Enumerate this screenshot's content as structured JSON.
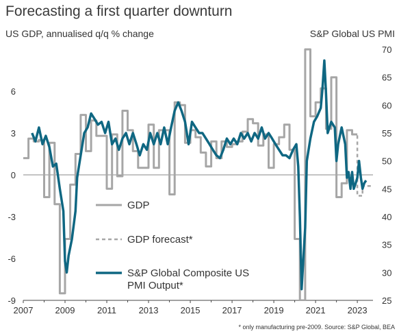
{
  "header": {
    "title": "Forecasting a first quarter downturn",
    "left_axis_title": "US GDP, annualised q/q % change",
    "right_axis_title": "S&P Global US PMI",
    "footnote": "* only manufacturing pre-2009. Source: S&P Global, BEA"
  },
  "chart_data": {
    "type": "line",
    "title": "Forecasting a first quarter downturn",
    "ylabel_left": "US GDP, annualised q/q % change",
    "ylabel_right": "S&P Global US PMI",
    "x_range": [
      2007.0,
      2023.75
    ],
    "x_ticks": [
      "2007",
      "2009",
      "2011",
      "2013",
      "2015",
      "2017",
      "2019",
      "2021",
      "2023"
    ],
    "y_left_range": [
      -9,
      9
    ],
    "y_left_ticks": [
      "-9",
      "-6",
      "-3",
      "0",
      "3",
      "6"
    ],
    "y_right_range": [
      25,
      70
    ],
    "y_right_ticks": [
      "25",
      "30",
      "35",
      "40",
      "45",
      "50",
      "55",
      "60",
      "65",
      "70"
    ],
    "grid": false,
    "colors": {
      "gdp": "#a6a6a6",
      "forecast": "#a6a6a6",
      "pmi": "#0f6782"
    },
    "legend": [
      {
        "key": "gdp",
        "label": "GDP",
        "style": "solid"
      },
      {
        "key": "forecast",
        "label": "GDP forecast*",
        "style": "dashed"
      },
      {
        "key": "pmi",
        "label_lines": [
          "S&P Global Composite US",
          "PMI Output*"
        ],
        "style": "solid-thick"
      }
    ],
    "series": [
      {
        "name": "GDP",
        "axis": "left",
        "step": true,
        "points": [
          [
            2007.0,
            1.2
          ],
          [
            2007.25,
            2.6
          ],
          [
            2007.5,
            2.4
          ],
          [
            2007.75,
            2.5
          ],
          [
            2008.0,
            -1.6
          ],
          [
            2008.25,
            2.3
          ],
          [
            2008.5,
            -2.1
          ],
          [
            2008.75,
            -8.5
          ],
          [
            2009.0,
            -4.6
          ],
          [
            2009.25,
            -0.7
          ],
          [
            2009.5,
            1.5
          ],
          [
            2009.75,
            4.3
          ],
          [
            2010.0,
            1.7
          ],
          [
            2010.25,
            3.9
          ],
          [
            2010.5,
            2.8
          ],
          [
            2010.75,
            2.8
          ],
          [
            2011.0,
            -1.0
          ],
          [
            2011.25,
            2.9
          ],
          [
            2011.5,
            -0.1
          ],
          [
            2011.75,
            4.6
          ],
          [
            2012.0,
            3.2
          ],
          [
            2012.25,
            1.7
          ],
          [
            2012.5,
            0.5
          ],
          [
            2012.75,
            0.5
          ],
          [
            2013.0,
            3.6
          ],
          [
            2013.25,
            0.5
          ],
          [
            2013.5,
            3.2
          ],
          [
            2013.75,
            3.2
          ],
          [
            2014.0,
            -1.4
          ],
          [
            2014.25,
            5.2
          ],
          [
            2014.5,
            5.0
          ],
          [
            2014.75,
            2.3
          ],
          [
            2015.0,
            3.2
          ],
          [
            2015.25,
            2.7
          ],
          [
            2015.5,
            1.6
          ],
          [
            2015.75,
            0.6
          ],
          [
            2016.0,
            2.4
          ],
          [
            2016.25,
            1.2
          ],
          [
            2016.5,
            2.4
          ],
          [
            2016.75,
            2.0
          ],
          [
            2017.0,
            2.2
          ],
          [
            2017.25,
            2.4
          ],
          [
            2017.5,
            3.1
          ],
          [
            2017.75,
            4.0
          ],
          [
            2018.0,
            3.7
          ],
          [
            2018.25,
            2.1
          ],
          [
            2018.5,
            2.9
          ],
          [
            2018.75,
            0.5
          ],
          [
            2019.0,
            2.2
          ],
          [
            2019.25,
            2.7
          ],
          [
            2019.5,
            3.6
          ],
          [
            2019.75,
            1.8
          ],
          [
            2020.0,
            -4.6
          ],
          [
            2020.25,
            -9.0
          ],
          [
            2020.5,
            9.0
          ],
          [
            2020.75,
            4.2
          ],
          [
            2021.0,
            5.2
          ],
          [
            2021.25,
            6.2
          ],
          [
            2021.5,
            3.3
          ],
          [
            2021.75,
            7.0
          ],
          [
            2022.0,
            -1.6
          ],
          [
            2022.25,
            -0.6
          ],
          [
            2022.5,
            3.2
          ],
          [
            2022.75,
            2.9
          ]
        ]
      },
      {
        "name": "GDP forecast*",
        "axis": "left",
        "step": true,
        "dashed": true,
        "points": [
          [
            2022.75,
            2.9
          ],
          [
            2023.0,
            -1.5
          ],
          [
            2023.25,
            -0.8
          ],
          [
            2023.5,
            -0.8
          ]
        ]
      },
      {
        "name": "S&P Global Composite US PMI Output*",
        "axis": "right",
        "points": [
          [
            2007.42,
            55
          ],
          [
            2007.58,
            53.5
          ],
          [
            2007.75,
            56
          ],
          [
            2007.92,
            53
          ],
          [
            2008.08,
            54.5
          ],
          [
            2008.25,
            52.5
          ],
          [
            2008.42,
            49
          ],
          [
            2008.58,
            49.5
          ],
          [
            2008.75,
            45
          ],
          [
            2008.92,
            41
          ],
          [
            2009.0,
            32
          ],
          [
            2009.08,
            30
          ],
          [
            2009.17,
            33
          ],
          [
            2009.33,
            36
          ],
          [
            2009.5,
            41
          ],
          [
            2009.58,
            47
          ],
          [
            2009.75,
            51
          ],
          [
            2009.92,
            55
          ],
          [
            2010.08,
            56
          ],
          [
            2010.25,
            58.5
          ],
          [
            2010.42,
            57.5
          ],
          [
            2010.58,
            56.5
          ],
          [
            2010.75,
            57
          ],
          [
            2010.92,
            55
          ],
          [
            2011.08,
            57
          ],
          [
            2011.25,
            53
          ],
          [
            2011.42,
            54
          ],
          [
            2011.58,
            52
          ],
          [
            2011.75,
            54
          ],
          [
            2011.92,
            55
          ],
          [
            2012.08,
            53
          ],
          [
            2012.25,
            55
          ],
          [
            2012.42,
            53
          ],
          [
            2012.58,
            51
          ],
          [
            2012.75,
            53
          ],
          [
            2012.92,
            52
          ],
          [
            2013.08,
            55
          ],
          [
            2013.25,
            53
          ],
          [
            2013.42,
            55
          ],
          [
            2013.58,
            53
          ],
          [
            2013.75,
            56
          ],
          [
            2013.92,
            53
          ],
          [
            2014.08,
            56
          ],
          [
            2014.25,
            59
          ],
          [
            2014.42,
            60.5
          ],
          [
            2014.58,
            59
          ],
          [
            2014.75,
            57
          ],
          [
            2014.92,
            53
          ],
          [
            2015.08,
            57
          ],
          [
            2015.25,
            56
          ],
          [
            2015.42,
            55
          ],
          [
            2015.58,
            55
          ],
          [
            2015.75,
            54
          ],
          [
            2015.92,
            53
          ],
          [
            2016.08,
            52
          ],
          [
            2016.25,
            51
          ],
          [
            2016.42,
            50.5
          ],
          [
            2016.58,
            52
          ],
          [
            2016.75,
            54
          ],
          [
            2016.92,
            53
          ],
          [
            2017.08,
            54
          ],
          [
            2017.25,
            53
          ],
          [
            2017.42,
            55
          ],
          [
            2017.58,
            54
          ],
          [
            2017.75,
            55
          ],
          [
            2017.92,
            53.5
          ],
          [
            2018.08,
            55
          ],
          [
            2018.25,
            54
          ],
          [
            2018.42,
            56
          ],
          [
            2018.58,
            54
          ],
          [
            2018.75,
            55
          ],
          [
            2018.92,
            54
          ],
          [
            2019.08,
            53
          ],
          [
            2019.25,
            52
          ],
          [
            2019.42,
            51
          ],
          [
            2019.58,
            51
          ],
          [
            2019.75,
            50.5
          ],
          [
            2019.92,
            52
          ],
          [
            2020.08,
            53
          ],
          [
            2020.17,
            49
          ],
          [
            2020.25,
            40
          ],
          [
            2020.33,
            27
          ],
          [
            2020.5,
            38
          ],
          [
            2020.58,
            50
          ],
          [
            2020.75,
            54
          ],
          [
            2020.92,
            57
          ],
          [
            2021.08,
            58
          ],
          [
            2021.25,
            59.5
          ],
          [
            2021.33,
            63
          ],
          [
            2021.42,
            68
          ],
          [
            2021.5,
            62
          ],
          [
            2021.58,
            55
          ],
          [
            2021.75,
            57
          ],
          [
            2021.92,
            56
          ],
          [
            2022.0,
            50
          ],
          [
            2022.08,
            53
          ],
          [
            2022.25,
            56
          ],
          [
            2022.42,
            53
          ],
          [
            2022.5,
            47
          ],
          [
            2022.58,
            48
          ],
          [
            2022.67,
            45
          ],
          [
            2022.75,
            48
          ],
          [
            2022.83,
            45
          ],
          [
            2022.92,
            46
          ],
          [
            2023.0,
            47
          ],
          [
            2023.08,
            50
          ],
          [
            2023.17,
            47
          ],
          [
            2023.25,
            45
          ],
          [
            2023.33,
            46
          ],
          [
            2023.42,
            46.5
          ]
        ]
      }
    ]
  }
}
